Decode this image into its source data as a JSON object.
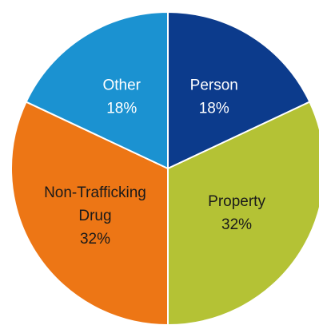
{
  "chart_data": {
    "type": "pie",
    "start_angle_deg": 0,
    "direction": "clockwise",
    "slices": [
      {
        "name": "Person",
        "value": 18,
        "label": "18%",
        "color": "#0c3b8c",
        "label_color": "#ffffff"
      },
      {
        "name": "Property",
        "value": 32,
        "label": "32%",
        "color": "#b4c235",
        "label_color": "#1a1a1a"
      },
      {
        "name": "Non-Trafficking Drug",
        "value": 32,
        "label": "32%",
        "color": "#ed7615",
        "label_color": "#1a1a1a"
      },
      {
        "name": "Other",
        "value": 18,
        "label": "18%",
        "color": "#1b92d1",
        "label_color": "#ffffff"
      }
    ],
    "title": "",
    "legend": "none",
    "slice_border_color": "#ffffff"
  }
}
